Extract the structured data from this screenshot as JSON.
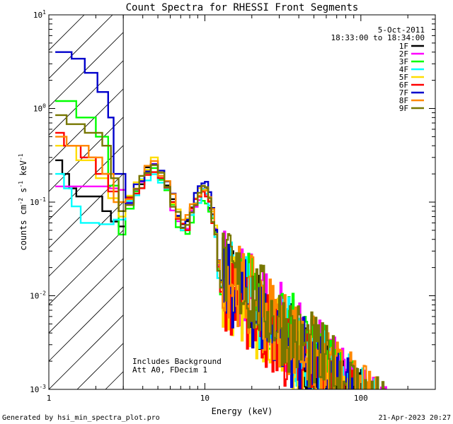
{
  "chart_data": {
    "type": "line",
    "title": "Count Spectra for RHESSI Front Segments",
    "xlabel": "Energy (keV)",
    "ylabel": {
      "base": "counts cm",
      "exp1": "-2",
      "mid1": " s",
      "exp2": "-1",
      "mid2": " keV",
      "exp3": "-1"
    },
    "xscale": "log",
    "yscale": "log",
    "xlim": [
      1,
      300
    ],
    "ylim": [
      0.001,
      10
    ],
    "x_ticks": [
      {
        "label": "1",
        "value": 1
      },
      {
        "label": "10",
        "value": 10
      },
      {
        "label": "100",
        "value": 100
      }
    ],
    "y_ticks": [
      {
        "base": "10",
        "exp": "-3",
        "value": 0.001
      },
      {
        "base": "10",
        "exp": "-2",
        "value": 0.01
      },
      {
        "base": "10",
        "exp": "-1",
        "value": 0.1
      },
      {
        "base": "10",
        "exp": "0",
        "value": 1
      },
      {
        "base": "10",
        "exp": "1",
        "value": 10
      }
    ],
    "shaded_region": {
      "from": 1,
      "to": 3
    },
    "date": "5-Oct-2011",
    "time_range": "18:33:00 to 18:34:00",
    "annotation": [
      "Includes Background",
      "Att A0, FDecim 1"
    ],
    "series": [
      {
        "name": "1F",
        "color": "#000000",
        "low": [
          [
            1.1,
            0.28
          ],
          [
            1.22,
            0.28
          ],
          [
            1.22,
            0.2
          ],
          [
            1.35,
            0.2
          ],
          [
            1.35,
            0.14
          ],
          [
            1.5,
            0.14
          ],
          [
            1.5,
            0.115
          ],
          [
            2.2,
            0.115
          ],
          [
            2.2,
            0.08
          ],
          [
            2.5,
            0.08
          ],
          [
            2.5,
            0.062
          ],
          [
            2.8,
            0.062
          ],
          [
            2.8,
            0.055
          ],
          [
            3.1,
            0.055
          ]
        ]
      },
      {
        "name": "2F",
        "color": "#ff00ff",
        "low": [
          [
            1.1,
            0.147
          ],
          [
            2.4,
            0.147
          ],
          [
            2.4,
            0.14
          ],
          [
            2.8,
            0.14
          ],
          [
            2.8,
            0.135
          ],
          [
            3.1,
            0.135
          ]
        ]
      },
      {
        "name": "3F",
        "color": "#00ff00",
        "low": [
          [
            1.1,
            1.2
          ],
          [
            1.5,
            1.2
          ],
          [
            1.5,
            0.8
          ],
          [
            2.0,
            0.8
          ],
          [
            2.0,
            0.5
          ],
          [
            2.4,
            0.5
          ],
          [
            2.4,
            0.15
          ],
          [
            2.8,
            0.15
          ],
          [
            2.8,
            0.045
          ],
          [
            3.1,
            0.045
          ]
        ]
      },
      {
        "name": "4F",
        "color": "#00ffff",
        "low": [
          [
            1.1,
            0.2
          ],
          [
            1.25,
            0.2
          ],
          [
            1.25,
            0.14
          ],
          [
            1.4,
            0.14
          ],
          [
            1.4,
            0.09
          ],
          [
            1.6,
            0.09
          ],
          [
            1.6,
            0.06
          ],
          [
            2.1,
            0.06
          ],
          [
            2.1,
            0.058
          ],
          [
            2.6,
            0.058
          ],
          [
            2.6,
            0.065
          ],
          [
            3.1,
            0.065
          ]
        ]
      },
      {
        "name": "5F",
        "color": "#ffdd00",
        "low": [
          [
            1.1,
            0.4
          ],
          [
            1.5,
            0.4
          ],
          [
            1.5,
            0.28
          ],
          [
            2.0,
            0.28
          ],
          [
            2.0,
            0.18
          ],
          [
            2.4,
            0.18
          ],
          [
            2.4,
            0.11
          ],
          [
            2.8,
            0.11
          ],
          [
            2.8,
            0.07
          ],
          [
            3.1,
            0.07
          ]
        ]
      },
      {
        "name": "6F",
        "color": "#ff0000",
        "low": [
          [
            1.1,
            0.55
          ],
          [
            1.25,
            0.55
          ],
          [
            1.25,
            0.4
          ],
          [
            1.6,
            0.4
          ],
          [
            1.6,
            0.3
          ],
          [
            2.0,
            0.3
          ],
          [
            2.0,
            0.2
          ],
          [
            2.4,
            0.2
          ],
          [
            2.4,
            0.13
          ],
          [
            2.8,
            0.13
          ],
          [
            2.8,
            0.08
          ],
          [
            3.1,
            0.08
          ]
        ]
      },
      {
        "name": "7F",
        "color": "#0000cc",
        "low": [
          [
            1.1,
            4.0
          ],
          [
            1.4,
            4.0
          ],
          [
            1.4,
            3.4
          ],
          [
            1.7,
            3.4
          ],
          [
            1.7,
            2.4
          ],
          [
            2.05,
            2.4
          ],
          [
            2.05,
            1.5
          ],
          [
            2.4,
            1.5
          ],
          [
            2.4,
            0.8
          ],
          [
            2.6,
            0.8
          ],
          [
            2.6,
            0.2
          ],
          [
            3.1,
            0.2
          ]
        ]
      },
      {
        "name": "8F",
        "color": "#ff8800",
        "low": [
          [
            1.1,
            0.5
          ],
          [
            1.3,
            0.5
          ],
          [
            1.3,
            0.4
          ],
          [
            1.8,
            0.4
          ],
          [
            1.8,
            0.3
          ],
          [
            2.2,
            0.3
          ],
          [
            2.2,
            0.2
          ],
          [
            2.6,
            0.2
          ],
          [
            2.6,
            0.1
          ],
          [
            3.1,
            0.1
          ]
        ]
      },
      {
        "name": "9F",
        "color": "#777700",
        "low": [
          [
            1.1,
            0.85
          ],
          [
            1.3,
            0.85
          ],
          [
            1.3,
            0.68
          ],
          [
            1.7,
            0.68
          ],
          [
            1.7,
            0.55
          ],
          [
            2.2,
            0.55
          ],
          [
            2.2,
            0.4
          ],
          [
            2.5,
            0.4
          ],
          [
            2.5,
            0.18
          ],
          [
            2.8,
            0.18
          ],
          [
            2.8,
            0.08
          ],
          [
            3.1,
            0.08
          ]
        ]
      }
    ],
    "mid_profile": [
      [
        3.1,
        0.09
      ],
      [
        3.5,
        0.1
      ],
      [
        3.8,
        0.14
      ],
      [
        4.1,
        0.17
      ],
      [
        4.5,
        0.22
      ],
      [
        5.0,
        0.25
      ],
      [
        5.5,
        0.19
      ],
      [
        6.0,
        0.14
      ],
      [
        6.5,
        0.1
      ],
      [
        7.0,
        0.07
      ],
      [
        7.5,
        0.055
      ],
      [
        8.0,
        0.06
      ],
      [
        8.5,
        0.08
      ],
      [
        9.0,
        0.1
      ],
      [
        9.5,
        0.12
      ],
      [
        10.0,
        0.14
      ],
      [
        10.5,
        0.13
      ],
      [
        11.0,
        0.1
      ],
      [
        11.5,
        0.07
      ],
      [
        12.0,
        0.05
      ],
      [
        12.5,
        0.02
      ],
      [
        13.0,
        0.013
      ]
    ],
    "mid_offsets": [
      1.0,
      0.95,
      0.85,
      0.9,
      1.05,
      0.97,
      1.12,
      1.07,
      1.02
    ],
    "footer_left": "Generated by hsi_min_spectra_plot.pro",
    "footer_right": "21-Apr-2023 20:27"
  }
}
